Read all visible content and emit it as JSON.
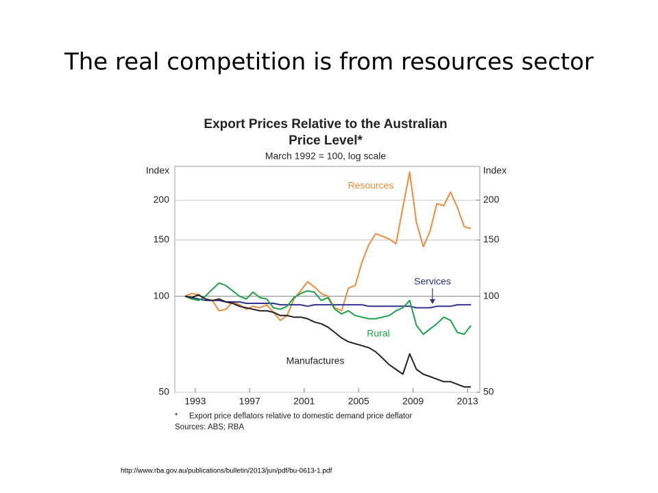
{
  "slide_title": "The real competition is from resources sector",
  "chart_data": {
    "type": "line",
    "title": [
      "Export Prices Relative to the Australian",
      "Price Level*"
    ],
    "subtitle": "March 1992 = 100, log scale",
    "y_label": "Index",
    "y2_label": "Index",
    "log_scale": true,
    "grid": true,
    "x": [
      1992.25,
      1992.75,
      1993.25,
      1993.75,
      1994.25,
      1994.75,
      1995.25,
      1995.75,
      1996.25,
      1996.75,
      1997.25,
      1997.75,
      1998.25,
      1998.75,
      1999.25,
      1999.75,
      2000.25,
      2000.75,
      2001.25,
      2001.75,
      2002.25,
      2002.75,
      2003.25,
      2003.75,
      2004.25,
      2004.75,
      2005.25,
      2005.75,
      2006.25,
      2006.75,
      2007.25,
      2007.75,
      2008.25,
      2008.75,
      2009.25,
      2009.75,
      2010.25,
      2010.75,
      2011.25,
      2011.75,
      2012.25,
      2012.75,
      2013.25
    ],
    "xlim": [
      1991.5,
      2013.9
    ],
    "xticks": [
      1993,
      1997,
      2001,
      2005,
      2009,
      2013
    ],
    "ylim": [
      50,
      255
    ],
    "yticks": [
      50,
      100,
      150,
      200
    ],
    "y2lim": [
      50,
      255
    ],
    "y2ticks": [
      50,
      100,
      150,
      200
    ],
    "series": [
      {
        "name": "Resources",
        "color": "#f08a3a",
        "values": [
          100,
          102,
          101,
          98,
          97,
          90,
          91,
          96,
          94,
          91,
          93,
          92,
          94,
          89,
          84,
          87,
          98,
          104,
          111,
          107,
          102,
          100,
          92,
          90,
          106,
          108,
          128,
          145,
          157,
          154,
          151,
          146,
          190,
          245,
          170,
          143,
          160,
          195,
          192,
          212,
          190,
          165,
          163
        ]
      },
      {
        "name": "Services",
        "color": "#2e3192",
        "values": [
          100,
          99,
          98,
          97,
          97,
          97,
          96,
          96,
          96,
          95,
          95,
          95,
          95,
          95,
          94,
          94,
          94,
          94,
          93,
          94,
          94,
          94,
          94,
          94,
          94,
          94,
          94,
          93,
          93,
          93,
          93,
          93,
          93,
          93,
          92,
          92,
          92,
          93,
          93,
          93,
          94,
          94,
          94
        ]
      },
      {
        "name": "Rural",
        "color": "#1aa14a",
        "values": [
          100,
          98,
          97,
          100,
          105,
          110,
          108,
          104,
          100,
          98,
          103,
          99,
          98,
          92,
          91,
          93,
          99,
          102,
          104,
          103,
          97,
          99,
          91,
          88,
          90,
          87,
          86,
          85,
          85,
          86,
          87,
          90,
          92,
          97,
          81,
          76,
          79,
          82,
          86,
          84,
          77,
          76,
          81
        ]
      },
      {
        "name": "Manufactures",
        "color": "#231f20",
        "values": [
          100,
          99,
          101,
          98,
          97,
          98,
          96,
          95,
          93,
          92,
          91,
          90,
          90,
          89,
          87,
          87,
          86,
          86,
          85,
          83,
          82,
          80,
          77,
          74,
          72,
          71,
          70,
          69,
          67,
          64,
          61,
          59,
          57,
          66,
          59,
          57,
          56,
          55,
          54,
          54,
          53,
          52,
          52
        ]
      }
    ],
    "footnote_mark": "*",
    "footnote": "Export price deflators relative to domestic demand price deflator",
    "sources": "Sources: ABS; RBA"
  },
  "url": "http://www.rba.gov.au/publications/bulletin/2013/jun/pdf/bu-0613-1.pdf"
}
